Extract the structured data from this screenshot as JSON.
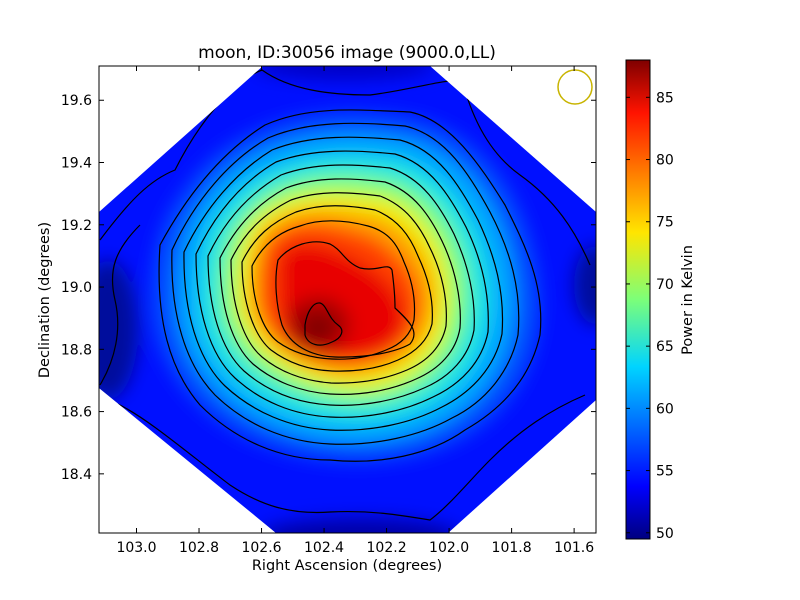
{
  "chart_data": {
    "type": "heatmap",
    "title": "moon, ID:30056 image (9000.0,LL)",
    "xlabel": "Right Ascension (degrees)",
    "ylabel": "Declination (degrees)",
    "xlim": [
      103.12,
      101.53
    ],
    "ylim": [
      18.21,
      19.71
    ],
    "x_ticks": [
      {
        "value": 103.0,
        "label": "103.0"
      },
      {
        "value": 102.8,
        "label": "102.8"
      },
      {
        "value": 102.6,
        "label": "102.6"
      },
      {
        "value": 102.4,
        "label": "102.4"
      },
      {
        "value": 102.2,
        "label": "102.2"
      },
      {
        "value": 102.0,
        "label": "102.0"
      },
      {
        "value": 101.8,
        "label": "101.8"
      },
      {
        "value": 101.6,
        "label": "101.6"
      }
    ],
    "y_ticks": [
      {
        "value": 18.4,
        "label": "18.4"
      },
      {
        "value": 18.6,
        "label": "18.6"
      },
      {
        "value": 18.8,
        "label": "18.8"
      },
      {
        "value": 19.0,
        "label": "19.0"
      },
      {
        "value": 19.2,
        "label": "19.2"
      },
      {
        "value": 19.4,
        "label": "19.4"
      },
      {
        "value": 19.6,
        "label": "19.6"
      }
    ],
    "colorbar": {
      "label": "Power in Kelvin",
      "range": [
        49.5,
        88.0
      ],
      "ticks": [
        {
          "value": 50,
          "label": "50"
        },
        {
          "value": 55,
          "label": "55"
        },
        {
          "value": 60,
          "label": "60"
        },
        {
          "value": 65,
          "label": "65"
        },
        {
          "value": 70,
          "label": "70"
        },
        {
          "value": 75,
          "label": "75"
        },
        {
          "value": 80,
          "label": "80"
        },
        {
          "value": 85,
          "label": "85"
        }
      ],
      "colormap": "jet"
    },
    "peak": {
      "ra": 102.4,
      "dec": 18.86,
      "value": 88
    },
    "background_value": 52,
    "contours": true,
    "contour_color": "#000000",
    "beam_marker_color": "#c8b400",
    "grid": false
  }
}
